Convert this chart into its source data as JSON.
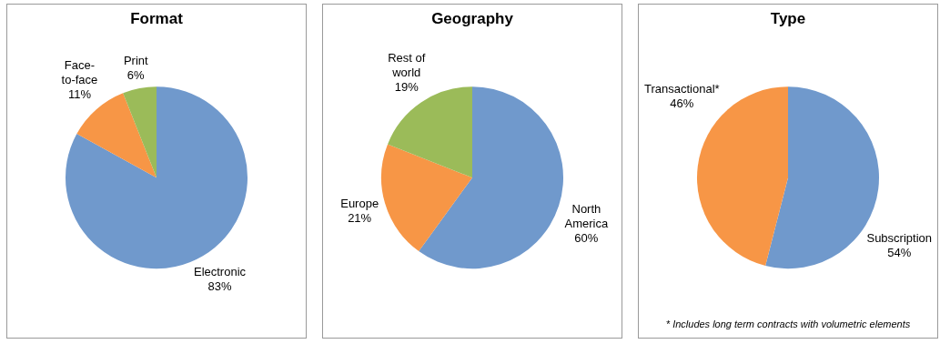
{
  "chart_data": [
    {
      "type": "pie",
      "title": "Format",
      "categories": [
        "Electronic",
        "Face-to-face",
        "Print"
      ],
      "values": [
        83,
        11,
        6
      ],
      "value_labels": [
        "83%",
        "11%",
        "6%"
      ],
      "colors": [
        "#7099cc",
        "#f79646",
        "#9bbb59"
      ]
    },
    {
      "type": "pie",
      "title": "Geography",
      "categories": [
        "North America",
        "Europe",
        "Rest of world"
      ],
      "values": [
        60,
        21,
        19
      ],
      "value_labels": [
        "60%",
        "21%",
        "19%"
      ],
      "colors": [
        "#7099cc",
        "#f79646",
        "#9bbb59"
      ]
    },
    {
      "type": "pie",
      "title": "Type",
      "categories": [
        "Subscription",
        "Transactional*"
      ],
      "values": [
        54,
        46
      ],
      "value_labels": [
        "54%",
        "46%"
      ],
      "colors": [
        "#7099cc",
        "#f79646"
      ],
      "annotations": [
        "* Includes long term contracts with volumetric elements"
      ]
    }
  ]
}
